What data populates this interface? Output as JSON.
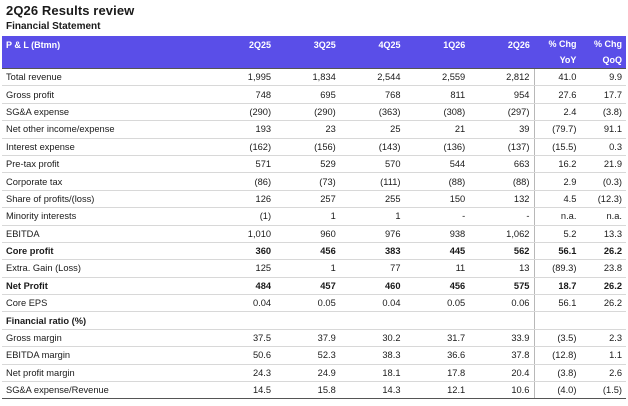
{
  "title": "2Q26 Results review",
  "section": "Financial Statement",
  "header": {
    "label": "P & L (Btmn)",
    "periods": [
      "2Q25",
      "3Q25",
      "4Q25",
      "1Q26",
      "2Q26"
    ],
    "chg_yoy": [
      "% Chg",
      "YoY"
    ],
    "chg_qoq": [
      "% Chg",
      "QoQ"
    ]
  },
  "rows": [
    {
      "label": "Total revenue",
      "values": [
        "1,995",
        "1,834",
        "2,544",
        "2,559",
        "2,812"
      ],
      "yoy": "41.0",
      "qoq": "9.9"
    },
    {
      "label": "Gross profit",
      "values": [
        "748",
        "695",
        "768",
        "811",
        "954"
      ],
      "yoy": "27.6",
      "qoq": "17.7"
    },
    {
      "label": "SG&A expense",
      "values": [
        "(290)",
        "(290)",
        "(363)",
        "(308)",
        "(297)"
      ],
      "yoy": "2.4",
      "qoq": "(3.8)"
    },
    {
      "label": "Net other income/expense",
      "values": [
        "193",
        "23",
        "25",
        "21",
        "39"
      ],
      "yoy": "(79.7)",
      "qoq": "91.1"
    },
    {
      "label": "Interest expense",
      "values": [
        "(162)",
        "(156)",
        "(143)",
        "(136)",
        "(137)"
      ],
      "yoy": "(15.5)",
      "qoq": "0.3"
    },
    {
      "label": "Pre-tax profit",
      "values": [
        "571",
        "529",
        "570",
        "544",
        "663"
      ],
      "yoy": "16.2",
      "qoq": "21.9"
    },
    {
      "label": "Corporate tax",
      "values": [
        "(86)",
        "(73)",
        "(111)",
        "(88)",
        "(88)"
      ],
      "yoy": "2.9",
      "qoq": "(0.3)"
    },
    {
      "label": "Share of profits/(loss)",
      "values": [
        "126",
        "257",
        "255",
        "150",
        "132"
      ],
      "yoy": "4.5",
      "qoq": "(12.3)"
    },
    {
      "label": "Minority interests",
      "values": [
        "(1)",
        "1",
        "1",
        "-",
        "-"
      ],
      "yoy": "n.a.",
      "qoq": "n.a."
    },
    {
      "label": "EBITDA",
      "values": [
        "1,010",
        "960",
        "976",
        "938",
        "1,062"
      ],
      "yoy": "5.2",
      "qoq": "13.3"
    },
    {
      "label": "Core profit",
      "values": [
        "360",
        "456",
        "383",
        "445",
        "562"
      ],
      "yoy": "56.1",
      "qoq": "26.2",
      "bold": true
    },
    {
      "label": "Extra. Gain (Loss)",
      "values": [
        "125",
        "1",
        "77",
        "11",
        "13"
      ],
      "yoy": "(89.3)",
      "qoq": "23.8"
    },
    {
      "label": "Net Profit",
      "values": [
        "484",
        "457",
        "460",
        "456",
        "575"
      ],
      "yoy": "18.7",
      "qoq": "26.2",
      "bold": true
    },
    {
      "label": "Core EPS",
      "values": [
        "0.04",
        "0.05",
        "0.04",
        "0.05",
        "0.06"
      ],
      "yoy": "56.1",
      "qoq": "26.2"
    }
  ],
  "ratio_section": "Financial ratio (%)",
  "ratios": [
    {
      "label": "Gross margin",
      "values": [
        "37.5",
        "37.9",
        "30.2",
        "31.7",
        "33.9"
      ],
      "yoy": "(3.5)",
      "qoq": "2.3"
    },
    {
      "label": "EBITDA margin",
      "values": [
        "50.6",
        "52.3",
        "38.3",
        "36.6",
        "37.8"
      ],
      "yoy": "(12.8)",
      "qoq": "1.1"
    },
    {
      "label": "Net profit margin",
      "values": [
        "24.3",
        "24.9",
        "18.1",
        "17.8",
        "20.4"
      ],
      "yoy": "(3.8)",
      "qoq": "2.6"
    },
    {
      "label": "SG&A expense/Revenue",
      "values": [
        "14.5",
        "15.8",
        "14.3",
        "12.1",
        "10.6"
      ],
      "yoy": "(4.0)",
      "qoq": "(1.5)"
    }
  ],
  "colors": {
    "header_bg": "#5a4ee8",
    "header_text": "#ffffff"
  }
}
